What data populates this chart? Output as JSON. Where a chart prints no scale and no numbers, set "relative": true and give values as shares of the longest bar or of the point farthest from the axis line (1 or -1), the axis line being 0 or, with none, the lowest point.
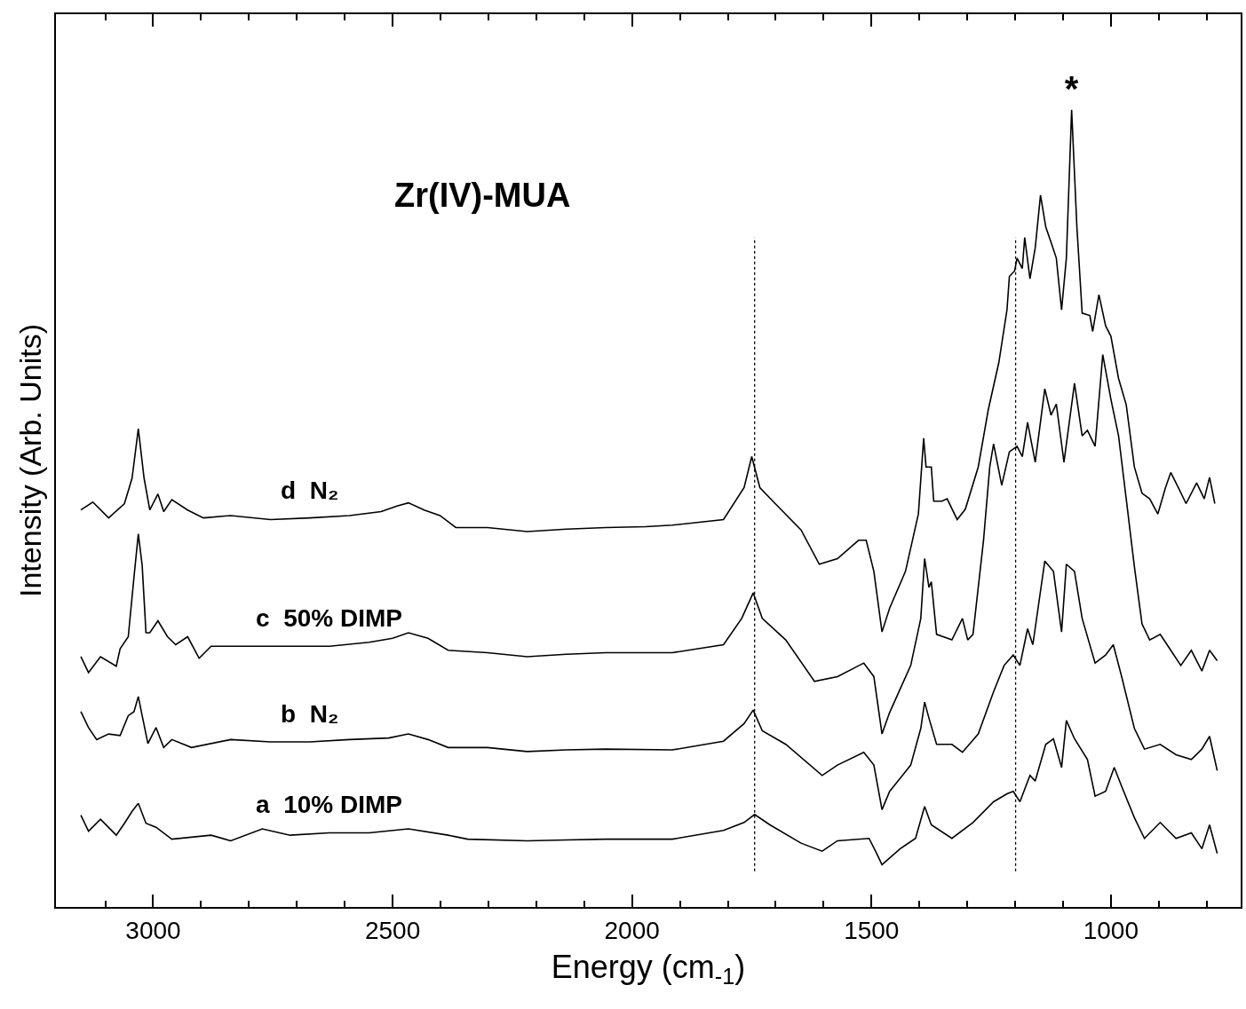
{
  "chart_data": {
    "type": "line",
    "relative": true,
    "title": "Zr(IV)-MUA",
    "xlabel": "Energy (cm$_{-1}$)",
    "ylabel": "Intensity (Arb. Units)",
    "xlim": [
      3203,
      729
    ],
    "xticks": [
      {
        "value": 3100,
        "label": null
      },
      3000,
      {
        "value": 2900,
        "label": null
      },
      {
        "value": 2800,
        "label": null
      },
      {
        "value": 2700,
        "label": null
      },
      {
        "value": 2600,
        "label": null
      },
      2500,
      {
        "value": 2400,
        "label": null
      },
      {
        "value": 2300,
        "label": null
      },
      {
        "value": 2200,
        "label": null
      },
      {
        "value": 2100,
        "label": null
      },
      2000,
      {
        "value": 1900,
        "label": null
      },
      {
        "value": 1800,
        "label": null
      },
      {
        "value": 1700,
        "label": null
      },
      {
        "value": 1600,
        "label": null
      },
      1500,
      {
        "value": 1400,
        "label": null
      },
      {
        "value": 1300,
        "label": null
      },
      {
        "value": 1200,
        "label": null
      },
      {
        "value": 1100,
        "label": null
      },
      1000,
      {
        "value": 900,
        "label": null
      },
      {
        "value": 800,
        "label": null
      }
    ],
    "line_style": "solid",
    "marker": "none",
    "series": [
      {
        "name": "d  N₂",
        "color": "#000000",
        "x": [
          3151,
          3126,
          3093,
          3060,
          3044,
          3031,
          3019,
          3007,
          2990,
          2978,
          2961,
          2928,
          2895,
          2838,
          2755,
          2673,
          2590,
          2524,
          2491,
          2467,
          2434,
          2401,
          2368,
          2302,
          2219,
          2137,
          2055,
          1972,
          1916,
          1809,
          1766,
          1750,
          1733,
          1701,
          1647,
          1609,
          1571,
          1527,
          1511,
          1495,
          1478,
          1462,
          1429,
          1402,
          1391,
          1386,
          1375,
          1370,
          1353,
          1342,
          1321,
          1304,
          1277,
          1256,
          1234,
          1217,
          1212,
          1201,
          1196,
          1185,
          1180,
          1169,
          1158,
          1147,
          1136,
          1125,
          1114,
          1103,
          1093,
          1082,
          1071,
          1060,
          1044,
          1038,
          1025,
          1011,
          1000,
          984,
          968,
          951,
          935,
          919,
          902,
          886,
          875,
          859,
          843,
          821,
          805,
          794,
          783
        ],
        "values": [
          0.498,
          0.508,
          0.488,
          0.506,
          0.538,
          0.6,
          0.538,
          0.498,
          0.518,
          0.496,
          0.511,
          0.498,
          0.488,
          0.491,
          0.486,
          0.488,
          0.491,
          0.496,
          0.503,
          0.507,
          0.498,
          0.491,
          0.476,
          0.476,
          0.471,
          0.474,
          0.476,
          0.477,
          0.479,
          0.486,
          0.526,
          0.565,
          0.526,
          0.506,
          0.473,
          0.43,
          0.437,
          0.46,
          0.46,
          0.421,
          0.345,
          0.375,
          0.421,
          0.493,
          0.588,
          0.552,
          0.552,
          0.509,
          0.509,
          0.512,
          0.486,
          0.499,
          0.552,
          0.624,
          0.683,
          0.749,
          0.791,
          0.798,
          0.814,
          0.801,
          0.84,
          0.788,
          0.827,
          0.893,
          0.853,
          0.834,
          0.814,
          0.749,
          0.814,
          1.0,
          0.853,
          0.745,
          0.742,
          0.722,
          0.768,
          0.729,
          0.716,
          0.663,
          0.63,
          0.552,
          0.519,
          0.512,
          0.493,
          0.526,
          0.545,
          0.526,
          0.506,
          0.532,
          0.512,
          0.539,
          0.506
        ]
      },
      {
        "name": "c  50% DIMP",
        "color": "#000000",
        "x": [
          3151,
          3135,
          3110,
          3077,
          3069,
          3052,
          3040,
          3031,
          3023,
          3015,
          3007,
          2990,
          2970,
          2953,
          2928,
          2904,
          2879,
          2797,
          2714,
          2632,
          2549,
          2500,
          2467,
          2426,
          2384,
          2302,
          2219,
          2137,
          2055,
          1916,
          1809,
          1771,
          1747,
          1728,
          1679,
          1619,
          1571,
          1516,
          1495,
          1478,
          1462,
          1418,
          1397,
          1389,
          1380,
          1375,
          1364,
          1332,
          1310,
          1299,
          1288,
          1266,
          1253,
          1245,
          1228,
          1212,
          1196,
          1185,
          1174,
          1158,
          1138,
          1125,
          1114,
          1098,
          1076,
          1060,
          1049,
          1033,
          1017,
          1000,
          984,
          968,
          951,
          935,
          919,
          897,
          875,
          854,
          832,
          810,
          794,
          778
        ],
        "values": [
          0.314,
          0.294,
          0.314,
          0.302,
          0.324,
          0.339,
          0.414,
          0.468,
          0.429,
          0.344,
          0.344,
          0.359,
          0.339,
          0.329,
          0.339,
          0.312,
          0.327,
          0.327,
          0.327,
          0.327,
          0.332,
          0.337,
          0.344,
          0.337,
          0.322,
          0.319,
          0.314,
          0.317,
          0.319,
          0.319,
          0.329,
          0.362,
          0.394,
          0.362,
          0.335,
          0.283,
          0.289,
          0.306,
          0.289,
          0.217,
          0.244,
          0.303,
          0.362,
          0.437,
          0.401,
          0.408,
          0.342,
          0.335,
          0.362,
          0.335,
          0.342,
          0.46,
          0.552,
          0.581,
          0.529,
          0.571,
          0.578,
          0.565,
          0.608,
          0.558,
          0.65,
          0.617,
          0.631,
          0.558,
          0.657,
          0.591,
          0.598,
          0.578,
          0.693,
          0.637,
          0.591,
          0.512,
          0.427,
          0.355,
          0.335,
          0.342,
          0.322,
          0.303,
          0.322,
          0.296,
          0.322,
          0.309
        ]
      },
      {
        "name": "b  N₂",
        "color": "#000000",
        "x": [
          3151,
          3135,
          3118,
          3093,
          3069,
          3052,
          3040,
          3031,
          3023,
          3011,
          2994,
          2978,
          2961,
          2920,
          2838,
          2755,
          2673,
          2590,
          2508,
          2467,
          2426,
          2384,
          2302,
          2219,
          2137,
          2055,
          1916,
          1809,
          1766,
          1747,
          1728,
          1679,
          1603,
          1571,
          1516,
          1495,
          1478,
          1462,
          1418,
          1397,
          1389,
          1380,
          1364,
          1332,
          1310,
          1277,
          1245,
          1223,
          1204,
          1190,
          1174,
          1163,
          1138,
          1120,
          1103,
          1093,
          1076,
          1060,
          1033,
          1011,
          995,
          978,
          951,
          930,
          897,
          864,
          832,
          810,
          794,
          778
        ],
        "values": [
          0.245,
          0.225,
          0.21,
          0.217,
          0.215,
          0.24,
          0.245,
          0.264,
          0.24,
          0.205,
          0.225,
          0.2,
          0.21,
          0.2,
          0.21,
          0.207,
          0.207,
          0.21,
          0.212,
          0.217,
          0.21,
          0.2,
          0.2,
          0.195,
          0.197,
          0.198,
          0.197,
          0.208,
          0.23,
          0.247,
          0.221,
          0.204,
          0.165,
          0.178,
          0.194,
          0.178,
          0.122,
          0.145,
          0.178,
          0.224,
          0.257,
          0.237,
          0.204,
          0.204,
          0.194,
          0.217,
          0.27,
          0.303,
          0.316,
          0.303,
          0.349,
          0.329,
          0.434,
          0.421,
          0.345,
          0.43,
          0.421,
          0.362,
          0.306,
          0.316,
          0.329,
          0.29,
          0.224,
          0.198,
          0.204,
          0.191,
          0.185,
          0.198,
          0.214,
          0.171
        ]
      },
      {
        "name": "a  10% DIMP",
        "color": "#000000",
        "x": [
          3151,
          3135,
          3110,
          3077,
          3060,
          3044,
          3031,
          3015,
          2994,
          2961,
          2879,
          2838,
          2772,
          2714,
          2632,
          2549,
          2467,
          2384,
          2343,
          2219,
          2137,
          2055,
          1916,
          1809,
          1766,
          1744,
          1712,
          1647,
          1603,
          1571,
          1505,
          1489,
          1478,
          1440,
          1408,
          1389,
          1375,
          1332,
          1288,
          1245,
          1217,
          1204,
          1190,
          1169,
          1158,
          1136,
          1120,
          1103,
          1093,
          1076,
          1049,
          1033,
          1011,
          993,
          978,
          951,
          930,
          897,
          864,
          832,
          810,
          794,
          778
        ],
        "values": [
          0.115,
          0.095,
          0.11,
          0.09,
          0.105,
          0.12,
          0.13,
          0.105,
          0.1,
          0.085,
          0.09,
          0.083,
          0.098,
          0.09,
          0.093,
          0.093,
          0.098,
          0.09,
          0.085,
          0.083,
          0.084,
          0.085,
          0.085,
          0.096,
          0.106,
          0.116,
          0.103,
          0.08,
          0.07,
          0.083,
          0.086,
          0.067,
          0.053,
          0.073,
          0.086,
          0.126,
          0.103,
          0.086,
          0.106,
          0.132,
          0.142,
          0.145,
          0.132,
          0.165,
          0.158,
          0.204,
          0.211,
          0.175,
          0.234,
          0.211,
          0.185,
          0.139,
          0.145,
          0.175,
          0.152,
          0.112,
          0.086,
          0.106,
          0.086,
          0.093,
          0.073,
          0.103,
          0.067
        ]
      }
    ],
    "ref_lines": [
      {
        "axis": "x",
        "value": 1744,
        "line_style": "dotted",
        "color": "#000000"
      },
      {
        "axis": "x",
        "value": 1199,
        "line_style": "dotted",
        "color": "#000000"
      }
    ],
    "annotations": [
      {
        "text": "*",
        "x": 1082,
        "y": 1.0
      }
    ]
  }
}
